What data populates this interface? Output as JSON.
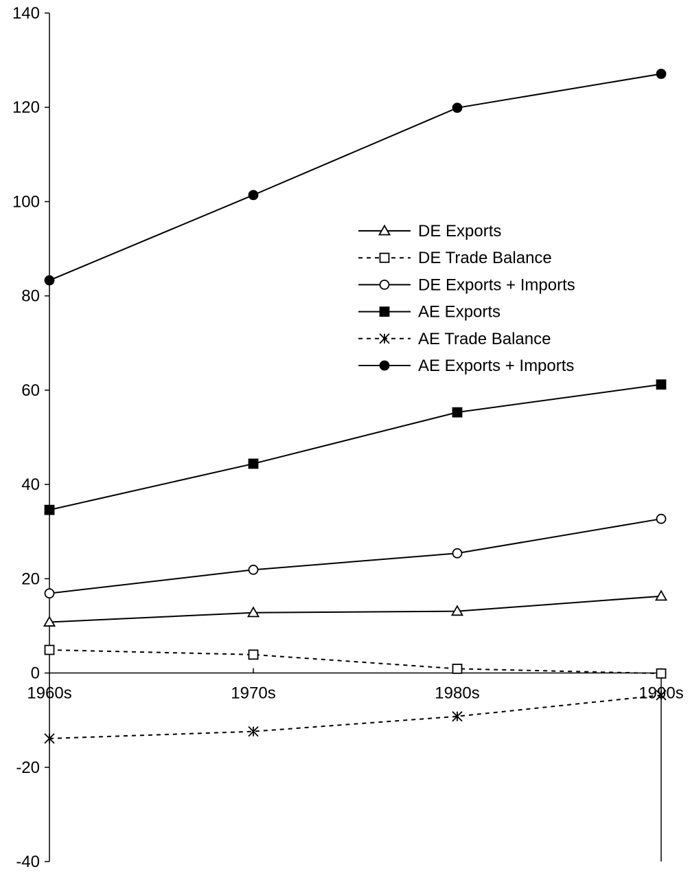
{
  "chart_data": {
    "type": "line",
    "title": "",
    "xlabel": "",
    "ylabel": "",
    "categories": [
      "1960s",
      "1970s",
      "1980s",
      "1990s"
    ],
    "ylim": [
      -40,
      140
    ],
    "yticks": [
      -40,
      -20,
      0,
      20,
      40,
      60,
      80,
      100,
      120,
      140
    ],
    "grid": false,
    "legend_position": "center-right",
    "series": [
      {
        "name": "DE Exports",
        "values": [
          10.8,
          12.8,
          13.1,
          16.3
        ],
        "marker": "triangle-open",
        "dash": "solid",
        "color": "#000000"
      },
      {
        "name": "DE Trade Balance",
        "values": [
          4.9,
          3.9,
          0.9,
          -0.1
        ],
        "marker": "square-open",
        "dash": "dashed",
        "color": "#000000"
      },
      {
        "name": "DE Exports + Imports",
        "values": [
          16.9,
          21.9,
          25.4,
          32.7
        ],
        "marker": "circle-open",
        "dash": "solid",
        "color": "#000000"
      },
      {
        "name": "AE Exports",
        "values": [
          34.6,
          44.4,
          55.3,
          61.2
        ],
        "marker": "square-filled",
        "dash": "solid",
        "color": "#000000"
      },
      {
        "name": "AE Trade Balance",
        "values": [
          -13.9,
          -12.4,
          -9.2,
          -4.7
        ],
        "marker": "asterisk",
        "dash": "dashed",
        "color": "#000000"
      },
      {
        "name": "AE Exports + Imports",
        "values": [
          83.3,
          101.4,
          119.9,
          127.1
        ],
        "marker": "circle-filled",
        "dash": "solid",
        "color": "#000000"
      }
    ]
  }
}
